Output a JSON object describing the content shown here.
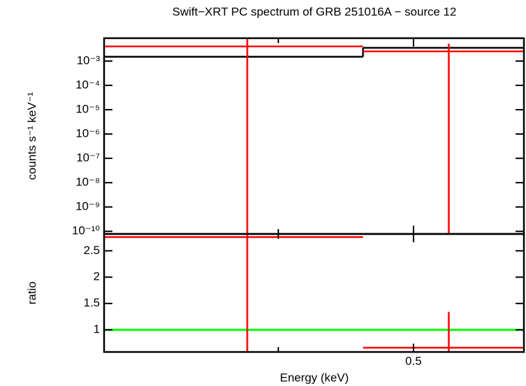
{
  "chart_data": [
    {
      "type": "errorbar",
      "title": "Swift−XRT PC spectrum of GRB 251016A − source 12",
      "ylabel": "counts s⁻¹ keV⁻¹",
      "log_x": true,
      "log_y": true,
      "xlim": [
        0.3,
        0.6
      ],
      "xticks": [
        0.5
      ],
      "xminorticks": [
        0.4
      ],
      "ylim": [
        7.8e-11,
        0.0087
      ],
      "yticks": [
        {
          "value": 1e-10,
          "label": "10⁻¹⁰"
        },
        {
          "value": 1e-09,
          "label": "10⁻⁹"
        },
        {
          "value": 1e-08,
          "label": "10⁻⁸"
        },
        {
          "value": 1e-07,
          "label": "10⁻⁷"
        },
        {
          "value": 1e-06,
          "label": "10⁻⁶"
        },
        {
          "value": 1e-05,
          "label": "10⁻⁵"
        },
        {
          "value": 0.0001,
          "label": "10⁻⁴"
        },
        {
          "value": 0.001,
          "label": "10⁻³"
        }
      ],
      "series": [
        {
          "style": "step",
          "color": "#000000",
          "bins": [
            0.3,
            0.46,
            0.6
          ],
          "values": [
            0.0015,
            0.0035
          ]
        },
        {
          "style": "points",
          "color": "#ff0000",
          "bins": [
            0.3,
            0.46,
            0.6
          ],
          "x": [
            0.38,
            0.53
          ],
          "values": [
            0.004,
            0.0025
          ],
          "errors": [
            0.004,
            0.0027
          ]
        }
      ]
    },
    {
      "type": "errorbar",
      "ylabel": "ratio",
      "xlabel": "Energy (keV)",
      "log_x": true,
      "log_y": false,
      "xlim": [
        0.3,
        0.6
      ],
      "xticks": [
        0.5
      ],
      "xminorticks": [
        0.4
      ],
      "ylim": [
        0.58,
        2.82
      ],
      "yticks": [
        1,
        1.5,
        2,
        2.5
      ],
      "reference_line": {
        "value": 1,
        "color": "#00ff00"
      },
      "series": [
        {
          "style": "points",
          "color": "#ff0000",
          "bins": [
            0.3,
            0.46,
            0.6
          ],
          "x": [
            0.38,
            0.53
          ],
          "values": [
            2.76,
            0.66
          ],
          "errors": [
            2.76,
            0.68
          ]
        }
      ]
    }
  ]
}
